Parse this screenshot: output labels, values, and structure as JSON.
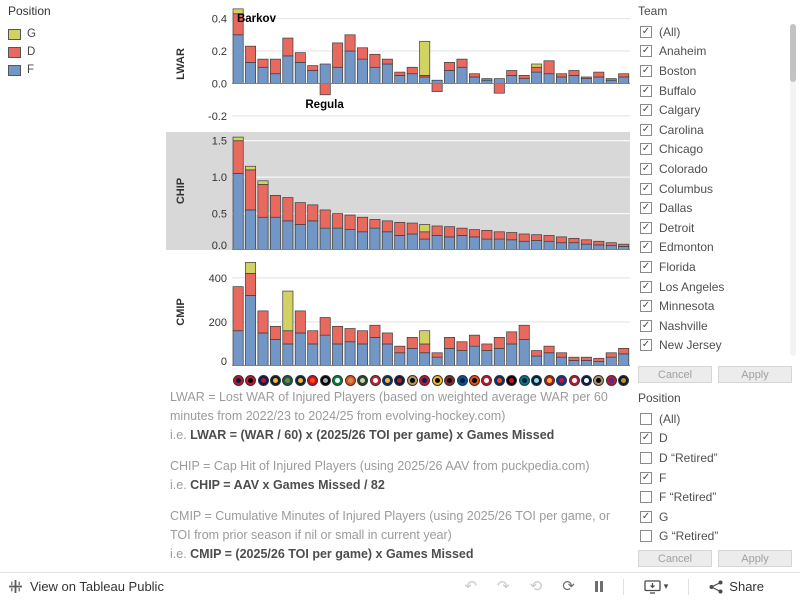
{
  "legend": {
    "title": "Position",
    "items": [
      {
        "label": "G",
        "color": "#d2d262"
      },
      {
        "label": "D",
        "color": "#e8695e"
      },
      {
        "label": "F",
        "color": "#7296c6"
      }
    ]
  },
  "chart_data": [
    {
      "type": "bar",
      "stacked": true,
      "ylabel": "LWAR",
      "ylim": [
        -0.25,
        0.49
      ],
      "yticks": [
        {
          "v": 0.4,
          "label": "0.4"
        },
        {
          "v": 0.2,
          "label": "0.2"
        },
        {
          "v": 0.0,
          "label": "0.0"
        },
        {
          "v": -0.2,
          "label": "-0.2"
        }
      ],
      "categories": "32 NHL teams shown as logo marks (unlabeled), shared x-axis",
      "series": [
        {
          "name": "F",
          "color": "#7296c6",
          "values": [
            0.3,
            0.13,
            0.1,
            0.06,
            0.17,
            0.13,
            0.08,
            0.12,
            0.1,
            0.2,
            0.15,
            0.1,
            0.12,
            0.05,
            0.06,
            0.04,
            0.02,
            0.08,
            0.1,
            0.04,
            0.02,
            0.03,
            0.05,
            0.03,
            0.07,
            0.06,
            0.04,
            0.05,
            0.03,
            0.04,
            0.02,
            0.04
          ]
        },
        {
          "name": "D",
          "color": "#e8695e",
          "values": [
            0.13,
            0.1,
            0.05,
            0.09,
            0.11,
            0.06,
            0.03,
            -0.07,
            0.15,
            0.1,
            0.07,
            0.08,
            0.03,
            0.02,
            0.04,
            0.01,
            -0.05,
            0.05,
            0.05,
            0.02,
            0.01,
            -0.06,
            0.03,
            0.02,
            0.03,
            0.08,
            0.02,
            0.03,
            0.01,
            0.03,
            0.01,
            0.02
          ]
        },
        {
          "name": "G",
          "color": "#d2d262",
          "values": [
            0.03,
            0,
            0,
            0,
            0,
            0,
            0,
            0,
            0,
            0,
            0,
            0,
            0,
            0,
            0,
            0.21,
            0,
            0,
            0,
            0,
            0,
            0,
            0,
            0,
            0.02,
            0,
            0,
            0,
            0,
            0,
            0,
            0
          ]
        }
      ],
      "annotations": [
        {
          "text": "Barkov",
          "bar": 0.4,
          "y": 0.38
        },
        {
          "text": "Regula",
          "bar": 5.9,
          "y": -0.15
        }
      ],
      "grid": "#e2e2e2",
      "plot_bg": "#ffffff"
    },
    {
      "type": "bar",
      "stacked": true,
      "ylabel": "CHIP",
      "ylim": [
        0,
        1.62
      ],
      "yticks": [
        {
          "v": 1.5,
          "label": "1.5"
        },
        {
          "v": 1.0,
          "label": "1.0"
        },
        {
          "v": 0.5,
          "label": "0.5"
        },
        {
          "v": 0.0,
          "label": "0.0"
        }
      ],
      "categories": "32 NHL teams shown as logo marks (unlabeled), shared x-axis",
      "series": [
        {
          "name": "F",
          "color": "#7296c6",
          "values": [
            1.05,
            0.55,
            0.45,
            0.45,
            0.4,
            0.35,
            0.4,
            0.3,
            0.3,
            0.28,
            0.25,
            0.3,
            0.25,
            0.2,
            0.22,
            0.15,
            0.2,
            0.18,
            0.2,
            0.18,
            0.15,
            0.15,
            0.14,
            0.12,
            0.13,
            0.12,
            0.1,
            0.1,
            0.08,
            0.07,
            0.06,
            0.05
          ]
        },
        {
          "name": "D",
          "color": "#e8695e",
          "values": [
            0.45,
            0.55,
            0.45,
            0.3,
            0.32,
            0.3,
            0.22,
            0.25,
            0.2,
            0.2,
            0.2,
            0.12,
            0.15,
            0.18,
            0.15,
            0.1,
            0.13,
            0.14,
            0.1,
            0.1,
            0.12,
            0.1,
            0.1,
            0.1,
            0.08,
            0.08,
            0.08,
            0.06,
            0.06,
            0.05,
            0.04,
            0.03
          ]
        },
        {
          "name": "G",
          "color": "#d2d262",
          "values": [
            0.05,
            0.05,
            0.05,
            0,
            0,
            0,
            0,
            0,
            0,
            0,
            0,
            0,
            0,
            0,
            0,
            0.1,
            0,
            0,
            0,
            0,
            0,
            0,
            0,
            0,
            0,
            0,
            0,
            0,
            0,
            0,
            0,
            0
          ]
        }
      ],
      "annotations": [],
      "grid": "#ffffff",
      "plot_bg": ""
    },
    {
      "type": "bar",
      "stacked": true,
      "ylabel": "CMIP",
      "ylim": [
        0,
        490
      ],
      "yticks": [
        {
          "v": 400,
          "label": "400"
        },
        {
          "v": 200,
          "label": "200"
        },
        {
          "v": 0,
          "label": "0"
        }
      ],
      "categories": "32 NHL teams shown as logo marks (unlabeled), shared x-axis",
      "series": [
        {
          "name": "F",
          "color": "#7296c6",
          "values": [
            160,
            320,
            150,
            120,
            100,
            150,
            100,
            140,
            100,
            110,
            100,
            130,
            100,
            60,
            80,
            60,
            40,
            80,
            70,
            90,
            70,
            80,
            100,
            120,
            45,
            60,
            40,
            25,
            25,
            20,
            40,
            55
          ]
        },
        {
          "name": "D",
          "color": "#e8695e",
          "values": [
            200,
            100,
            100,
            60,
            60,
            100,
            60,
            80,
            80,
            60,
            60,
            55,
            50,
            30,
            50,
            40,
            20,
            50,
            40,
            50,
            30,
            50,
            55,
            65,
            25,
            30,
            20,
            15,
            15,
            15,
            20,
            25
          ]
        },
        {
          "name": "G",
          "color": "#d2d262",
          "values": [
            0,
            50,
            0,
            0,
            180,
            0,
            0,
            0,
            0,
            0,
            0,
            0,
            0,
            0,
            0,
            60,
            0,
            0,
            0,
            0,
            0,
            0,
            0,
            0,
            0,
            0,
            0,
            0,
            0,
            0,
            0,
            0
          ]
        }
      ],
      "annotations": [],
      "grid": "#e2e2e2",
      "plot_bg": "#ffffff"
    }
  ],
  "logo_colors": [
    [
      "#c8102e",
      "#041e42"
    ],
    [
      "#ce1126",
      "#000000"
    ],
    [
      "#00205b",
      "#c8102e"
    ],
    [
      "#041e42",
      "#ffb81c"
    ],
    [
      "#006847",
      "#8d744a"
    ],
    [
      "#002654",
      "#fcb514"
    ],
    [
      "#cf0a2c",
      "#ff4c00"
    ],
    [
      "#000000",
      "#a2aaad"
    ],
    [
      "#00843d",
      "#ffffff"
    ],
    [
      "#fa4616",
      "#b9975b"
    ],
    [
      "#154734",
      "#ddcba4"
    ],
    [
      "#c52032",
      "#ffffff"
    ],
    [
      "#003087",
      "#ffb81c"
    ],
    [
      "#041e42",
      "#af1e2d"
    ],
    [
      "#b9975b",
      "#000000"
    ],
    [
      "#ce1126",
      "#00205b"
    ],
    [
      "#ffb81c",
      "#000000"
    ],
    [
      "#8c2633",
      "#111111"
    ],
    [
      "#00539b",
      "#041e42"
    ],
    [
      "#f74902",
      "#000000"
    ],
    [
      "#ce1126",
      "#ffffff"
    ],
    [
      "#002f87",
      "#fc4c02"
    ],
    [
      "#000000",
      "#cf0a2c"
    ],
    [
      "#00778b",
      "#041e42"
    ],
    [
      "#041e42",
      "#99d9d9"
    ],
    [
      "#a6192e",
      "#ffb81c"
    ],
    [
      "#0038a8",
      "#ce1126"
    ],
    [
      "#c8102e",
      "#ffffff"
    ],
    [
      "#00205b",
      "#ffffff"
    ],
    [
      "#b4975a",
      "#000000"
    ],
    [
      "#ce1126",
      "#3333aa"
    ],
    [
      "#041e42",
      "#c69214"
    ]
  ],
  "notes": [
    {
      "desc": "LWAR = Lost WAR of Injured Players (based on weighted average WAR per 60 minutes from 2022/23 to 2024/25 from evolving-hockey.com)",
      "prefix": "i.e. ",
      "formula": "LWAR = (WAR / 60) x (2025/26 TOI per game) x Games Missed"
    },
    {
      "desc": "CHIP = Cap Hit of Injured Players (using 2025/26 AAV from puckpedia.com)",
      "prefix": "i.e. ",
      "formula": "CHIP = AAV x Games Missed / 82"
    },
    {
      "desc": "CMIP = Cumulative Minutes of Injured Players (using 2025/26 TOI per game, or TOI from prior season if nil or small in current year)",
      "prefix": "i.e. ",
      "formula": "CMIP = (2025/26 TOI per game) x Games Missed"
    }
  ],
  "filters": {
    "team": {
      "title": "Team",
      "items": [
        {
          "label": "(All)",
          "checked": true
        },
        {
          "label": "Anaheim",
          "checked": true
        },
        {
          "label": "Boston",
          "checked": true
        },
        {
          "label": "Buffalo",
          "checked": true
        },
        {
          "label": "Calgary",
          "checked": true
        },
        {
          "label": "Carolina",
          "checked": true
        },
        {
          "label": "Chicago",
          "checked": true
        },
        {
          "label": "Colorado",
          "checked": true
        },
        {
          "label": "Columbus",
          "checked": true
        },
        {
          "label": "Dallas",
          "checked": true
        },
        {
          "label": "Detroit",
          "checked": true
        },
        {
          "label": "Edmonton",
          "checked": true
        },
        {
          "label": "Florida",
          "checked": true
        },
        {
          "label": "Los Angeles",
          "checked": true
        },
        {
          "label": "Minnesota",
          "checked": true
        },
        {
          "label": "Nashville",
          "checked": true
        },
        {
          "label": "New Jersey",
          "checked": true
        }
      ],
      "cancel": "Cancel",
      "apply": "Apply"
    },
    "position": {
      "title": "Position",
      "items": [
        {
          "label": "(All)",
          "checked": false
        },
        {
          "label": "D",
          "checked": true
        },
        {
          "label": "D “Retired”",
          "checked": false
        },
        {
          "label": "F",
          "checked": true
        },
        {
          "label": "F “Retired”",
          "checked": false
        },
        {
          "label": "G",
          "checked": true
        },
        {
          "label": "G “Retired”",
          "checked": false
        }
      ],
      "cancel": "Cancel",
      "apply": "Apply"
    }
  },
  "toolbar": {
    "view_label": "View on Tableau Public",
    "share_label": "Share"
  }
}
